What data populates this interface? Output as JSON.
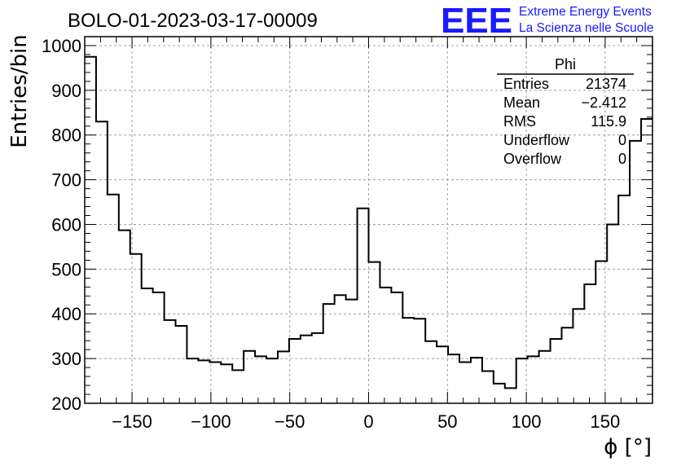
{
  "chart_data": {
    "type": "histogram",
    "title": "BOLO-01-2023-03-17-00009",
    "xlabel": "ϕ [°]",
    "ylabel": "Entries/bin",
    "xlim": [
      -180,
      180
    ],
    "ylim": [
      200,
      1020
    ],
    "x_ticks": [
      -150,
      -100,
      -50,
      0,
      50,
      100,
      150
    ],
    "y_ticks": [
      200,
      300,
      400,
      500,
      600,
      700,
      800,
      900,
      1000
    ],
    "grid": true,
    "bin_width": 7.2,
    "bin_edges_start": -180,
    "values": [
      975,
      830,
      667,
      587,
      534,
      457,
      448,
      386,
      373,
      300,
      296,
      292,
      287,
      274,
      317,
      305,
      300,
      316,
      344,
      352,
      357,
      422,
      442,
      432,
      636,
      516,
      459,
      448,
      391,
      389,
      339,
      327,
      309,
      292,
      302,
      272,
      244,
      234,
      300,
      305,
      317,
      344,
      369,
      411,
      466,
      518,
      600,
      665,
      787,
      836
    ],
    "stats_box": {
      "name": "Phi",
      "rows": [
        {
          "label": "Entries",
          "value": "21374"
        },
        {
          "label": "Mean",
          "value": "−2.412"
        },
        {
          "label": "RMS",
          "value": "115.9"
        },
        {
          "label": "Underflow",
          "value": "0"
        },
        {
          "label": "Overflow",
          "value": "0"
        }
      ]
    },
    "logo": {
      "big": "EEE",
      "line1": "Extreme Energy Events",
      "line2": "La Scienza nelle Scuole"
    },
    "colors": {
      "line": "#000000",
      "grid": "#a0a0a0",
      "logo": "#1a1aff"
    }
  }
}
